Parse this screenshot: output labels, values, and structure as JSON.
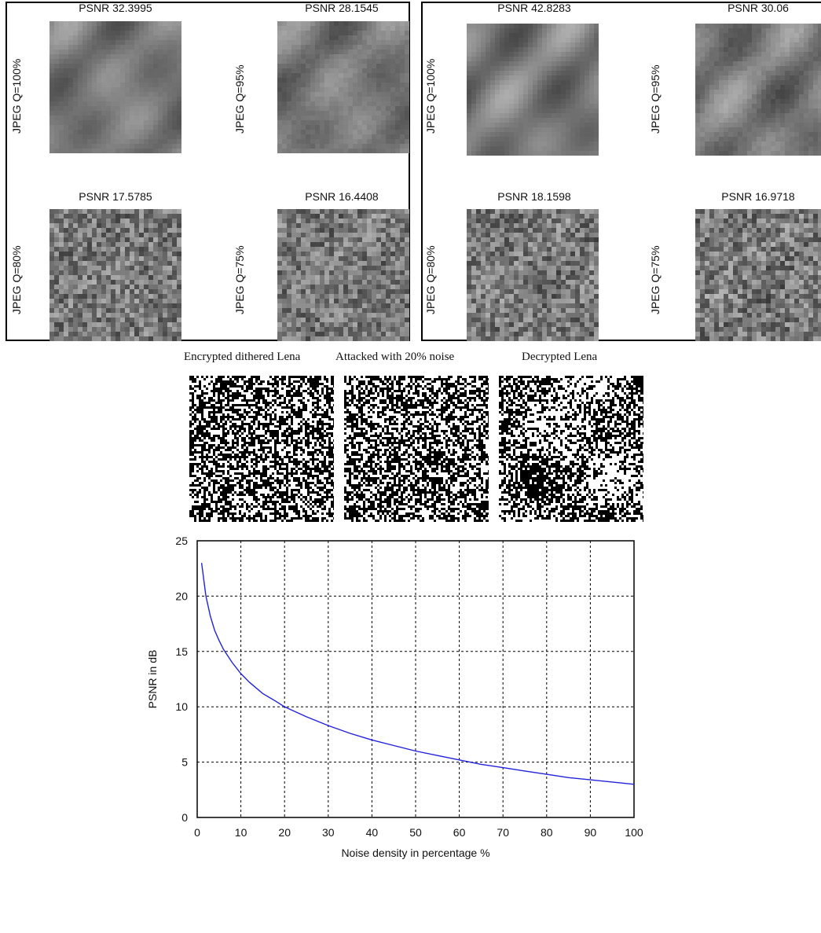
{
  "panels": [
    {
      "name": "barbara",
      "cells": [
        {
          "title": "PSNR 32.3995",
          "label": "JPEG Q=100%",
          "noise": 0.05,
          "tone": 0.55
        },
        {
          "title": "PSNR 28.1545",
          "label": "JPEG Q=95%",
          "noise": 0.12,
          "tone": 0.55
        },
        {
          "title": "PSNR 17.5785",
          "label": "JPEG Q=80%",
          "noise": 0.85,
          "tone": 0.55
        },
        {
          "title": "PSNR 16.4408",
          "label": "JPEG Q=75%",
          "noise": 0.8,
          "tone": 0.55
        }
      ]
    },
    {
      "name": "lena",
      "cells": [
        {
          "title": "PSNR 42.8283",
          "label": "JPEG Q=100%",
          "noise": 0.03,
          "tone": 0.6
        },
        {
          "title": "PSNR 30.06",
          "label": "JPEG Q=95%",
          "noise": 0.1,
          "tone": 0.6
        },
        {
          "title": "PSNR 18.1598",
          "label": "JPEG Q=80%",
          "noise": 0.75,
          "tone": 0.6
        },
        {
          "title": "PSNR 16.9718",
          "label": "JPEG Q=75%",
          "noise": 0.8,
          "tone": 0.6
        }
      ]
    }
  ],
  "dither_row": {
    "captions": [
      "Encrypted dithered Lena",
      "Attacked with 20% noise",
      "Decrypted Lena"
    ],
    "images": [
      {
        "name": "encrypted-dithered-lena",
        "kind": "random"
      },
      {
        "name": "attacked-20-noise",
        "kind": "random"
      },
      {
        "name": "decrypted-lena",
        "kind": "structured"
      }
    ]
  },
  "chart_data": {
    "type": "line",
    "title": "",
    "xlabel": "Noise density in percentage %",
    "ylabel": "PSNR in dB",
    "xlim": [
      0,
      100
    ],
    "ylim": [
      0,
      25
    ],
    "xticks": [
      0,
      10,
      20,
      30,
      40,
      50,
      60,
      70,
      80,
      90,
      100
    ],
    "yticks": [
      0,
      5,
      10,
      15,
      20,
      25
    ],
    "grid": true,
    "line_color": "#2222dd",
    "series": [
      {
        "x": [
          1,
          2,
          3,
          4,
          5,
          6,
          8,
          10,
          12,
          15,
          18,
          20,
          25,
          30,
          35,
          40,
          45,
          50,
          55,
          60,
          65,
          70,
          75,
          80,
          85,
          90,
          95,
          100
        ],
        "values": [
          23.0,
          20.0,
          18.2,
          16.9,
          16.0,
          15.2,
          14.0,
          13.0,
          12.2,
          11.2,
          10.5,
          10.0,
          9.1,
          8.3,
          7.6,
          7.0,
          6.5,
          6.0,
          5.6,
          5.2,
          4.8,
          4.5,
          4.2,
          3.9,
          3.6,
          3.4,
          3.2,
          3.0
        ]
      }
    ]
  }
}
